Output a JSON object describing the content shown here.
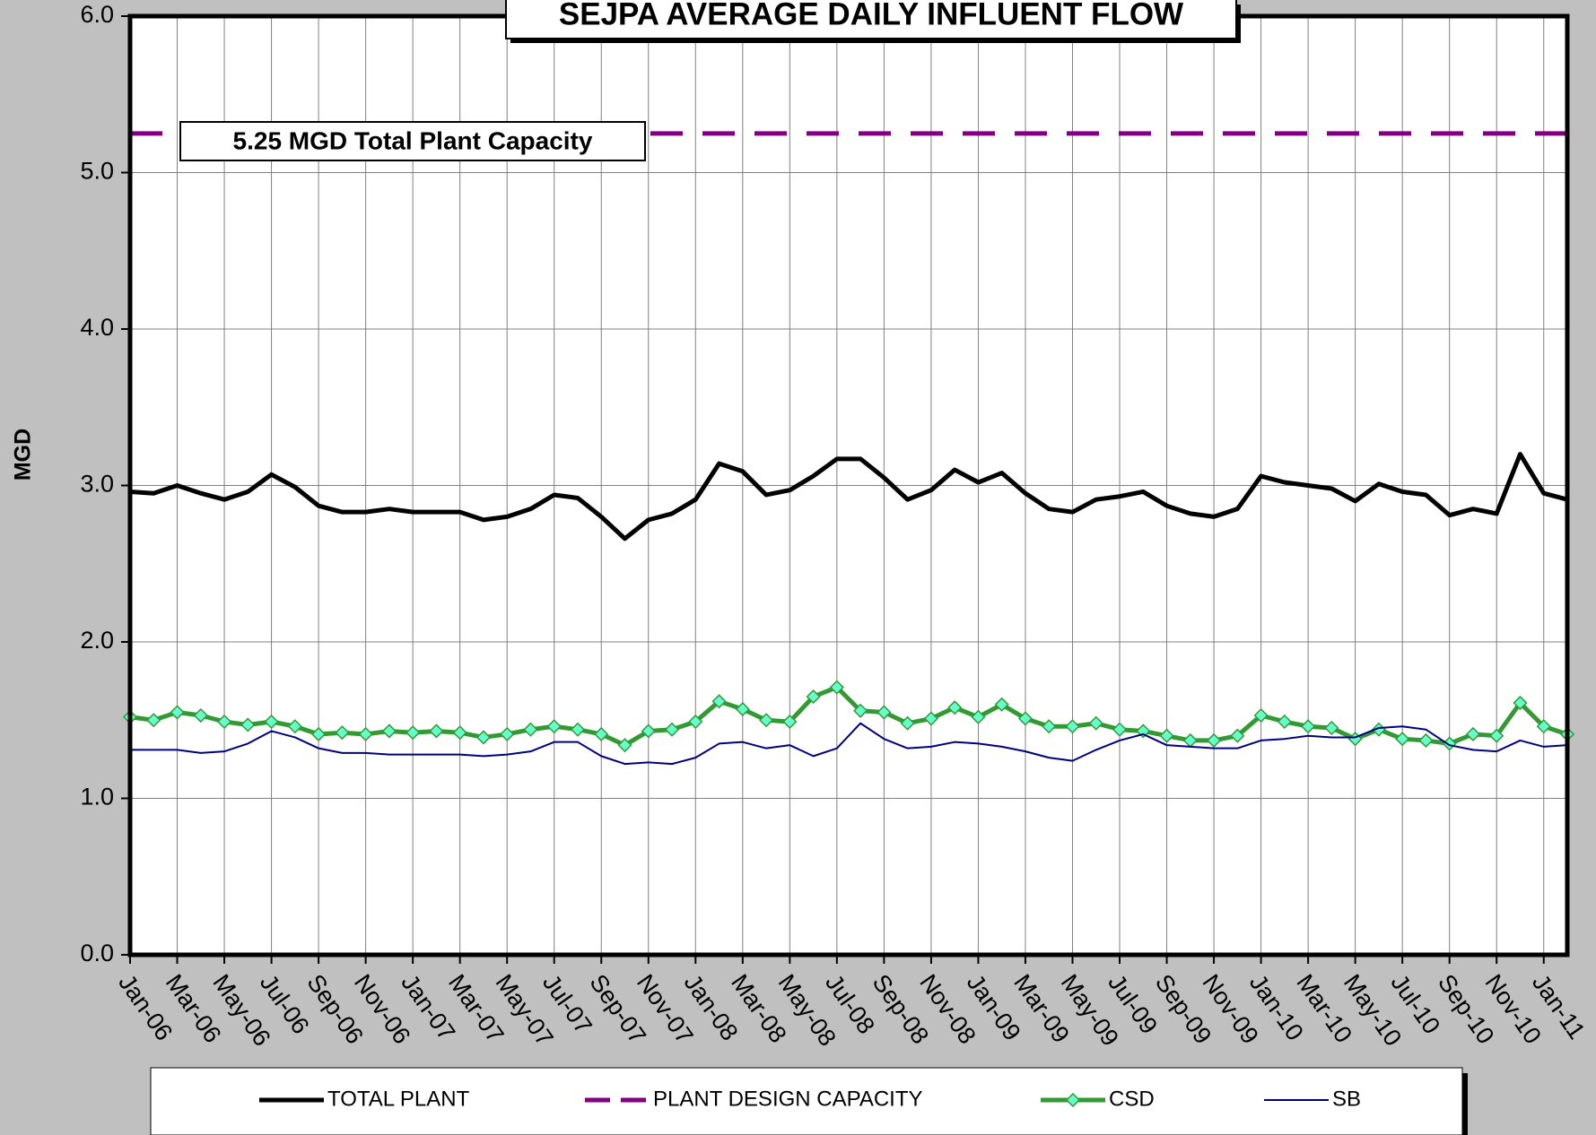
{
  "chart_data": {
    "type": "line",
    "title": "SEJPA AVERAGE DAILY INFLUENT FLOW",
    "y_label": "MGD",
    "annotation": "5.25 MGD Total Plant Capacity",
    "categories": [
      "Jan-06",
      null,
      "Mar-06",
      null,
      "May-06",
      null,
      "Jul-06",
      null,
      "Sep-06",
      null,
      "Nov-06",
      null,
      "Jan-07",
      null,
      "Mar-07",
      null,
      "May-07",
      null,
      "Jul-07",
      null,
      "Sep-07",
      null,
      "Nov-07",
      null,
      "Jan-08",
      null,
      "Mar-08",
      null,
      "May-08",
      null,
      "Jul-08",
      null,
      "Sep-08",
      null,
      "Nov-08",
      null,
      "Jan-09",
      null,
      "Mar-09",
      null,
      "May-09",
      null,
      "Jul-09",
      null,
      "Sep-09",
      null,
      "Nov-09",
      null,
      "Jan-10",
      null,
      "Mar-10",
      null,
      "May-10",
      null,
      "Jul-10",
      null,
      "Sep-10",
      null,
      "Nov-10",
      null,
      "Jan-11",
      null
    ],
    "series": [
      {
        "name": "TOTAL PLANT",
        "color": "#000000",
        "values": [
          2.96,
          2.95,
          3.0,
          2.95,
          2.91,
          2.96,
          3.07,
          2.99,
          2.87,
          2.83,
          2.83,
          2.85,
          2.83,
          2.83,
          2.83,
          2.78,
          2.8,
          2.85,
          2.94,
          2.92,
          2.8,
          2.66,
          2.78,
          2.82,
          2.91,
          3.14,
          3.09,
          2.94,
          2.97,
          3.06,
          3.17,
          3.17,
          3.05,
          2.91,
          2.97,
          3.1,
          3.02,
          3.08,
          2.95,
          2.85,
          2.83,
          2.91,
          2.93,
          2.96,
          2.87,
          2.82,
          2.8,
          2.85,
          3.06,
          3.02,
          3.0,
          2.98,
          2.9,
          3.01,
          2.96,
          2.94,
          2.81,
          2.85,
          2.82,
          3.2,
          2.95,
          2.91
        ]
      },
      {
        "name": "PLANT DESIGN CAPACITY",
        "color": "#800080",
        "dashed": true,
        "values": [
          5.25,
          5.25,
          5.25,
          5.25,
          5.25,
          5.25,
          5.25,
          5.25,
          5.25,
          5.25,
          5.25,
          5.25,
          5.25,
          5.25,
          5.25,
          5.25,
          5.25,
          5.25,
          5.25,
          5.25,
          5.25,
          5.25,
          5.25,
          5.25,
          5.25,
          5.25,
          5.25,
          5.25,
          5.25,
          5.25,
          5.25,
          5.25,
          5.25,
          5.25,
          5.25,
          5.25,
          5.25,
          5.25,
          5.25,
          5.25,
          5.25,
          5.25,
          5.25,
          5.25,
          5.25,
          5.25,
          5.25,
          5.25,
          5.25,
          5.25,
          5.25,
          5.25,
          5.25,
          5.25,
          5.25,
          5.25,
          5.25,
          5.25,
          5.25,
          5.25,
          5.25,
          5.25
        ]
      },
      {
        "name": "CSD",
        "color": "#339933",
        "marker_color": "#66ffcc",
        "values": [
          1.52,
          1.5,
          1.55,
          1.53,
          1.49,
          1.47,
          1.49,
          1.46,
          1.41,
          1.42,
          1.41,
          1.43,
          1.42,
          1.43,
          1.42,
          1.39,
          1.41,
          1.44,
          1.46,
          1.44,
          1.41,
          1.34,
          1.43,
          1.44,
          1.49,
          1.62,
          1.57,
          1.5,
          1.49,
          1.65,
          1.71,
          1.56,
          1.55,
          1.48,
          1.51,
          1.58,
          1.52,
          1.6,
          1.51,
          1.46,
          1.46,
          1.48,
          1.44,
          1.43,
          1.4,
          1.37,
          1.37,
          1.4,
          1.53,
          1.49,
          1.46,
          1.45,
          1.38,
          1.44,
          1.38,
          1.37,
          1.35,
          1.41,
          1.4,
          1.61,
          1.46,
          1.41
        ]
      },
      {
        "name": "SB",
        "color": "#000080",
        "values": [
          1.31,
          1.31,
          1.31,
          1.29,
          1.3,
          1.35,
          1.43,
          1.39,
          1.32,
          1.29,
          1.29,
          1.28,
          1.28,
          1.28,
          1.28,
          1.27,
          1.28,
          1.3,
          1.36,
          1.36,
          1.27,
          1.22,
          1.23,
          1.22,
          1.26,
          1.35,
          1.36,
          1.32,
          1.34,
          1.27,
          1.32,
          1.48,
          1.38,
          1.32,
          1.33,
          1.36,
          1.35,
          1.33,
          1.3,
          1.26,
          1.24,
          1.31,
          1.37,
          1.41,
          1.34,
          1.33,
          1.32,
          1.32,
          1.37,
          1.38,
          1.4,
          1.39,
          1.39,
          1.45,
          1.46,
          1.44,
          1.34,
          1.31,
          1.3,
          1.37,
          1.33,
          1.34
        ]
      }
    ],
    "ylim": [
      0,
      6
    ],
    "yticks": [
      {
        "value": 0,
        "label": "0.0"
      },
      {
        "value": 1,
        "label": "1.0"
      },
      {
        "value": 2,
        "label": "2.0"
      },
      {
        "value": 3,
        "label": "3.0"
      },
      {
        "value": 4,
        "label": "4.0"
      },
      {
        "value": 5,
        "label": "5.0"
      },
      {
        "value": 6,
        "label": "6.0"
      }
    ],
    "grid": true,
    "legend": "bottom"
  }
}
